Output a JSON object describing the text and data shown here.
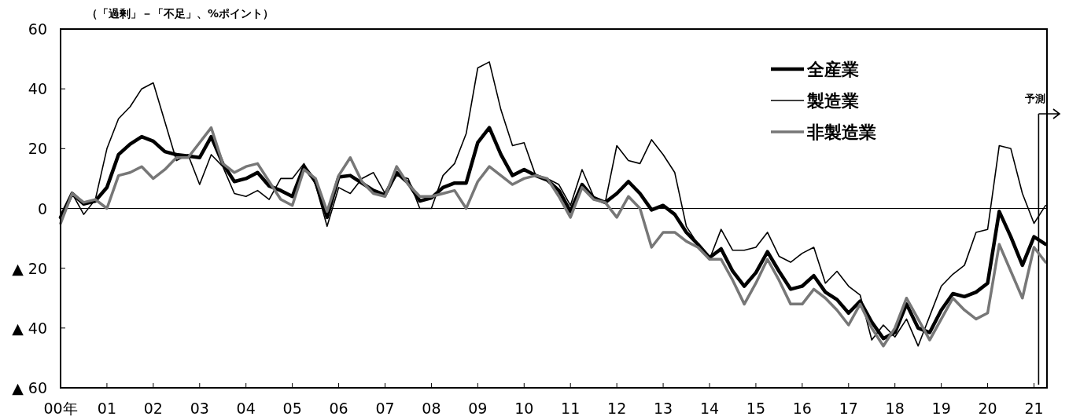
{
  "chart_data": {
    "type": "line",
    "ylabel": "（「過剰」－「不足」、%ポイント）",
    "x": [
      0,
      0.25,
      0.5,
      0.75,
      1,
      1.25,
      1.5,
      1.75,
      2,
      2.25,
      2.5,
      2.75,
      3,
      3.25,
      3.5,
      3.75,
      4,
      4.25,
      4.5,
      4.75,
      5,
      5.25,
      5.5,
      5.75,
      6,
      6.25,
      6.5,
      6.75,
      7,
      7.25,
      7.5,
      7.75,
      8,
      8.25,
      8.5,
      8.75,
      9,
      9.25,
      9.5,
      9.75,
      10,
      10.25,
      10.5,
      10.75,
      11,
      11.25,
      11.5,
      11.75,
      12,
      12.25,
      12.5,
      12.75,
      13,
      13.25,
      13.5,
      13.75,
      14,
      14.25,
      14.5,
      14.75,
      15,
      15.25,
      15.5,
      15.75,
      16,
      16.25,
      16.5,
      16.75,
      17,
      17.25,
      17.5,
      17.75,
      18,
      18.25,
      18.5,
      18.75,
      19,
      19.25,
      19.5,
      19.75,
      20,
      20.25,
      20.5,
      20.75,
      21,
      21.25
    ],
    "series": [
      {
        "name": "全産業",
        "color": "#000000",
        "values": [
          -3,
          5,
          1.5,
          2.5,
          7,
          18,
          21.5,
          24,
          22.5,
          19,
          18,
          17.5,
          17,
          24,
          15,
          9,
          10,
          12,
          7.5,
          6,
          4,
          14,
          9,
          -3,
          10.5,
          11,
          8.5,
          6,
          4.5,
          12,
          8.5,
          2.5,
          3.5,
          7,
          8.5,
          8.5,
          22,
          27,
          18,
          11,
          13,
          11,
          9.5,
          6,
          -1,
          8,
          3.5,
          2,
          5,
          9,
          5,
          -0.5,
          1,
          -2,
          -8,
          -12,
          -16.5,
          -13.5,
          -21,
          -26,
          -21.5,
          -14.5,
          -21,
          -27,
          -26,
          -22.5,
          -28,
          -30.5,
          -35,
          -31,
          -38,
          -43.5,
          -41.5,
          -32,
          -40,
          -41.5,
          -34,
          -28.5,
          -29.5,
          -28,
          -25,
          -1,
          -9.5,
          -19,
          -9.5,
          -12
        ]
      },
      {
        "name": "製造業",
        "color": "#000000",
        "values": [
          -3,
          5,
          -2,
          3,
          20,
          30,
          34,
          40,
          42,
          29,
          16,
          18,
          8,
          18,
          14,
          5,
          4,
          6,
          3,
          10,
          10,
          15,
          8,
          -6,
          7,
          5,
          10,
          12,
          5,
          11,
          10,
          0,
          0,
          11,
          15,
          25,
          47,
          49,
          33,
          21,
          22,
          11,
          10,
          8,
          1,
          13,
          4,
          2,
          21,
          16,
          15,
          23,
          18,
          12,
          -6,
          -12,
          -17,
          -7,
          -14,
          -14,
          -13,
          -8,
          -16,
          -18,
          -15,
          -13,
          -25,
          -21,
          -26,
          -29,
          -44,
          -39,
          -43,
          -37,
          -46,
          -36,
          -26,
          -22,
          -19,
          -8,
          -7,
          21,
          20,
          5,
          -5,
          1
        ]
      },
      {
        "name": "非製造業",
        "color": "#777777",
        "values": [
          -5,
          5,
          2,
          3,
          0,
          11,
          12,
          14,
          10,
          13,
          17,
          17,
          22,
          27,
          15,
          12,
          14,
          15,
          9,
          3,
          1,
          13,
          10,
          -1,
          11,
          17,
          9,
          5,
          4,
          14,
          8,
          4,
          4,
          5,
          6,
          0,
          9,
          14,
          11,
          8,
          10,
          11,
          10,
          4,
          -3,
          7,
          3,
          2,
          -3,
          4,
          0,
          -13,
          -8,
          -8,
          -11,
          -13,
          -17,
          -17,
          -24,
          -32,
          -25,
          -17,
          -24,
          -32,
          -32,
          -27,
          -30,
          -34,
          -39,
          -32,
          -40,
          -46,
          -40,
          -30,
          -37,
          -44,
          -37,
          -30,
          -34,
          -37,
          -35,
          -12,
          -21,
          -30,
          -13,
          -18
        ]
      }
    ],
    "xlim": [
      0,
      21.28
    ],
    "xticks": [
      {
        "value": 0,
        "label": "00年"
      },
      {
        "value": 1,
        "label": "01"
      },
      {
        "value": 2,
        "label": "02"
      },
      {
        "value": 3,
        "label": "03"
      },
      {
        "value": 4,
        "label": "04"
      },
      {
        "value": 5,
        "label": "05"
      },
      {
        "value": 6,
        "label": "06"
      },
      {
        "value": 7,
        "label": "07"
      },
      {
        "value": 8,
        "label": "08"
      },
      {
        "value": 9,
        "label": "09"
      },
      {
        "value": 10,
        "label": "10"
      },
      {
        "value": 11,
        "label": "11"
      },
      {
        "value": 12,
        "label": "12"
      },
      {
        "value": 13,
        "label": "13"
      },
      {
        "value": 14,
        "label": "14"
      },
      {
        "value": 15,
        "label": "15"
      },
      {
        "value": 16,
        "label": "16"
      },
      {
        "value": 17,
        "label": "17"
      },
      {
        "value": 18,
        "label": "18"
      },
      {
        "value": 19,
        "label": "19"
      },
      {
        "value": 20,
        "label": "20"
      },
      {
        "value": 21,
        "label": "21"
      }
    ],
    "ylim": [
      -60,
      60
    ],
    "yticks": [
      60,
      40,
      20,
      0,
      {
        "value": -20,
        "label": "▲ 20"
      },
      {
        "value": -40,
        "label": "▲ 40"
      },
      {
        "value": -60,
        "label": "▲ 60"
      }
    ],
    "ref_lines": [
      {
        "axis": "y",
        "value": 0,
        "color": "#000000"
      },
      {
        "axis": "x",
        "value": 21.1,
        "label": "予測",
        "color": "#000000"
      }
    ],
    "legend": "top right",
    "grid": false,
    "marker": "none",
    "line_style": "solid"
  }
}
